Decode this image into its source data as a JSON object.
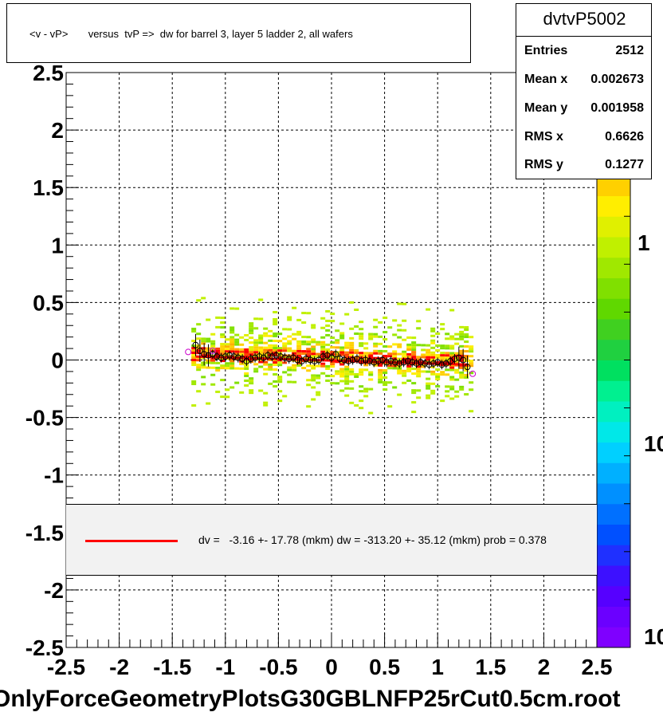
{
  "title": "<v - vP>       versus  tvP =>  dw for barrel 3, layer 5 ladder 2, all wafers",
  "stats": {
    "name": "dvtvP5002",
    "rows": [
      {
        "label": "Entries",
        "value": "2512"
      },
      {
        "label": "Mean x",
        "value": "0.002673"
      },
      {
        "label": "Mean y",
        "value": "0.001958"
      },
      {
        "label": "RMS x",
        "value": "0.6626"
      },
      {
        "label": "RMS y",
        "value": "0.1277"
      }
    ]
  },
  "fit_legend": "dv =   -3.16 +- 17.78 (mkm) dw = -313.20 +- 35.12 (mkm) prob = 0.378",
  "footer": "OnlyForceGeometryPlotsG30GBLNFP25rCut0.5cm.root",
  "palette_labels": [
    "1",
    "10",
    "10"
  ],
  "chart_data": {
    "type": "heatmap",
    "xlim": [
      -2.5,
      2.5
    ],
    "ylim": [
      -2.5,
      2.5
    ],
    "grid": true,
    "x_ticks": [
      "-2.5",
      "-2",
      "-1.5",
      "-1",
      "-0.5",
      "0",
      "0.5",
      "1",
      "1.5",
      "2",
      "2.5"
    ],
    "y_ticks": [
      "2.5",
      "2",
      "1.5",
      "1",
      "0.5",
      "0",
      "-0.5",
      "-1",
      "-1.5",
      "-2",
      "-2.5"
    ],
    "profile_points": {
      "x": [
        -1.28,
        -1.24,
        -1.2,
        -1.16,
        -1.12,
        -1.08,
        -1.04,
        -1.0,
        -0.96,
        -0.92,
        -0.88,
        -0.84,
        -0.8,
        -0.76,
        -0.72,
        -0.68,
        -0.64,
        -0.6,
        -0.56,
        -0.52,
        -0.48,
        -0.44,
        -0.4,
        -0.36,
        -0.32,
        -0.28,
        -0.24,
        -0.2,
        -0.16,
        -0.12,
        -0.08,
        -0.04,
        0.0,
        0.04,
        0.08,
        0.12,
        0.16,
        0.2,
        0.24,
        0.28,
        0.32,
        0.36,
        0.4,
        0.44,
        0.48,
        0.52,
        0.56,
        0.6,
        0.64,
        0.68,
        0.72,
        0.76,
        0.8,
        0.84,
        0.88,
        0.92,
        0.96,
        1.0,
        1.04,
        1.08,
        1.12,
        1.16,
        1.2,
        1.24,
        1.28
      ],
      "y": [
        0.13,
        0.08,
        0.05,
        0.04,
        0.05,
        0.03,
        0.02,
        0.03,
        0.04,
        0.03,
        0.02,
        0.01,
        -0.01,
        0.01,
        0.02,
        0.03,
        0.02,
        0.04,
        0.03,
        0.04,
        0.03,
        0.02,
        0.01,
        0.02,
        0.0,
        -0.01,
        0.01,
        0.0,
        -0.01,
        0.0,
        0.03,
        0.04,
        0.02,
        0.05,
        0.01,
        0.0,
        -0.01,
        0.0,
        0.01,
        -0.01,
        0.0,
        -0.01,
        -0.02,
        -0.01,
        0.0,
        -0.02,
        -0.01,
        -0.02,
        -0.03,
        -0.02,
        -0.01,
        -0.02,
        -0.03,
        -0.02,
        -0.03,
        -0.04,
        -0.03,
        -0.02,
        -0.04,
        -0.03,
        -0.01,
        0.01,
        0.02,
        0.0,
        -0.06
      ]
    },
    "fit_line": {
      "x": [
        -1.28,
        1.28
      ],
      "y": [
        0.03,
        -0.04
      ]
    }
  }
}
